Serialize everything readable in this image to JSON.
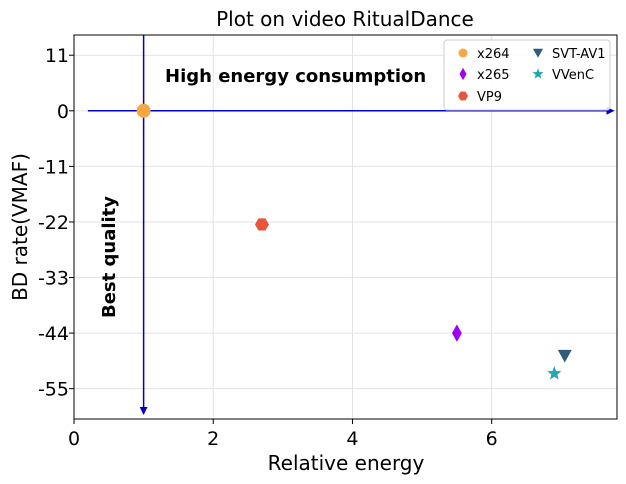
{
  "chart_data": {
    "type": "scatter",
    "title": "Plot on video RitualDance",
    "xlabel": "Relative energy",
    "ylabel": "BD rate(VMAF)",
    "xlim": [
      0,
      7.8
    ],
    "ylim": [
      -61,
      15
    ],
    "xticks": [
      0,
      2,
      4,
      6
    ],
    "yticks": [
      11,
      0,
      -11,
      -22,
      -33,
      -44,
      -55
    ],
    "grid": true,
    "legend_position": "top-right",
    "series": [
      {
        "name": "x264",
        "x": 1.0,
        "y": 0.0,
        "color": "#f5a742",
        "marker": "circle"
      },
      {
        "name": "x265",
        "x": 5.5,
        "y": -44.0,
        "color": "#a100f2",
        "marker": "diamond"
      },
      {
        "name": "VP9",
        "x": 2.7,
        "y": -22.5,
        "color": "#e8553f",
        "marker": "hexagon"
      },
      {
        "name": "SVT-AV1",
        "x": 7.05,
        "y": -48.5,
        "color": "#2f5b7c",
        "marker": "triangle-down"
      },
      {
        "name": "VVenC",
        "x": 6.9,
        "y": -52.0,
        "color": "#1fa7b5",
        "marker": "star"
      }
    ],
    "annotations": [
      {
        "text": "High energy consumption",
        "orientation": "horizontal"
      },
      {
        "text": "Best quality",
        "orientation": "vertical"
      }
    ],
    "reference_lines": {
      "horizontal": {
        "y": 0,
        "x_from": 0.2,
        "x_to": 7.75,
        "color": "#0000cc"
      },
      "vertical": {
        "x": 1,
        "y_from": 15,
        "y_to": -60,
        "color": "#0000cc"
      }
    }
  }
}
